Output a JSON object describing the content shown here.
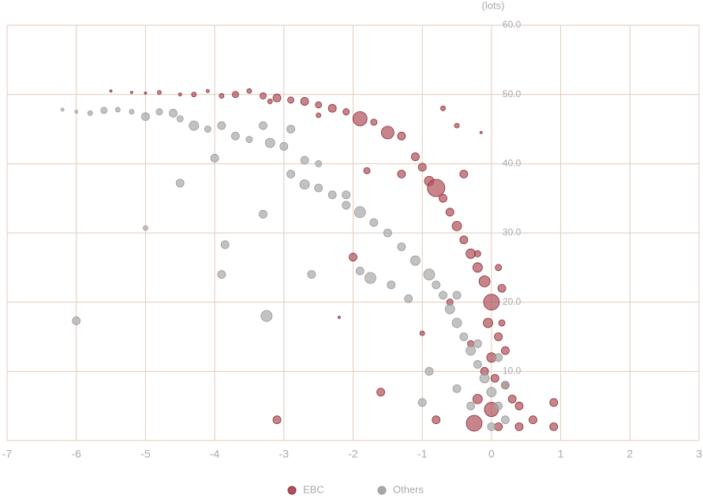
{
  "chart_data": {
    "type": "scatter",
    "y_unit": "(lots)",
    "xlim": [
      -7,
      3
    ],
    "xticks": [
      -7,
      -6,
      -5,
      -4,
      -3,
      -2,
      -1,
      0,
      1,
      2,
      3
    ],
    "ylim": [
      0,
      60
    ],
    "yticks": [
      {
        "value": 10,
        "label": "10.0"
      },
      {
        "value": 20,
        "label": "20.0"
      },
      {
        "value": 30,
        "label": "30.0"
      },
      {
        "value": 40,
        "label": "40.0"
      },
      {
        "value": 50,
        "label": "50.0"
      },
      {
        "value": 60,
        "label": "60.0"
      }
    ],
    "grid": true,
    "legend": "bottom",
    "series": [
      {
        "name": "EBC",
        "color": "#b0505a",
        "x": [
          -5.5,
          -5.2,
          -5,
          -4.8,
          -4.5,
          -4.3,
          -4.1,
          -3.9,
          -3.7,
          -3.5,
          -3.3,
          -3.1,
          -2.9,
          -2.7,
          -2.5,
          -2.3,
          -2.1,
          -1.9,
          -1.7,
          -1.5,
          -1.3,
          -1.1,
          -1,
          -0.9,
          -0.8,
          -0.7,
          -0.6,
          -0.5,
          -0.4,
          -0.3,
          -0.2,
          -0.1,
          0,
          -0.05,
          0.1,
          0,
          -0.1,
          0.2,
          -0.2,
          0,
          -0.25,
          0.1,
          0.4,
          0.9,
          0.9,
          -1.6,
          -3.1,
          -2.2,
          -1,
          -2,
          -1.8,
          -0.7,
          -0.5,
          -0.15,
          -0.4,
          -0.2,
          0.15,
          0.2,
          0.3,
          -0.3,
          0.1,
          -0.6,
          0.05,
          -1.3,
          -2.5,
          -3.2,
          0.4,
          0.6,
          -0.8,
          0.15
        ],
        "values": [
          50.5,
          50.3,
          50.2,
          50.3,
          50,
          50,
          50.5,
          49.8,
          50,
          50.5,
          49.8,
          49.5,
          49.2,
          49,
          48.5,
          48,
          47.5,
          46.5,
          46,
          44.5,
          44,
          41,
          39.5,
          37.5,
          36.5,
          35,
          33,
          31,
          29,
          27,
          25,
          23,
          20,
          17,
          15,
          12,
          10,
          8,
          6,
          4.5,
          2.5,
          2,
          2,
          5.5,
          2,
          7,
          3,
          17.8,
          15.5,
          26.5,
          39,
          48,
          45.5,
          44.5,
          38.5,
          27,
          22,
          13,
          6,
          14,
          25,
          20,
          9,
          38.5,
          47,
          49,
          5,
          3,
          3,
          17
        ],
        "sizes": [
          1.5,
          1.5,
          1.5,
          2.5,
          2,
          3,
          2,
          3,
          4,
          3,
          4,
          5,
          4,
          5,
          4,
          5,
          4,
          9,
          4,
          8,
          5,
          5,
          5,
          6,
          11,
          5,
          5,
          6,
          5,
          6,
          6,
          7,
          10,
          6,
          5,
          6,
          5,
          5,
          6,
          9,
          10,
          5,
          5,
          5,
          5,
          5,
          5,
          1.5,
          3,
          5,
          4,
          3,
          3,
          1.5,
          5,
          4,
          5,
          5,
          5,
          4,
          4,
          4,
          5,
          5,
          3,
          3,
          5,
          5,
          5,
          4
        ]
      },
      {
        "name": "Others",
        "color": "#a8a8a8",
        "x": [
          -6.2,
          -6,
          -5.8,
          -5.6,
          -5.4,
          -5.2,
          -5,
          -4.8,
          -4.6,
          -4.5,
          -4.3,
          -4.1,
          -3.9,
          -3.7,
          -3.5,
          -3.3,
          -3.2,
          -3,
          -2.9,
          -2.7,
          -2.5,
          -2.9,
          -2.7,
          -2.5,
          -2.3,
          -2.1,
          -1.9,
          -1.7,
          -1.5,
          -1.3,
          -1.1,
          -0.9,
          -0.8,
          -0.7,
          -0.6,
          -0.5,
          -0.4,
          -0.3,
          -0.2,
          -0.1,
          0,
          0.1,
          0.2,
          -0.5,
          -0.9,
          -1,
          -1.9,
          -1.75,
          -1.45,
          -6,
          -4.5,
          -4,
          -3.85,
          -3.9,
          -3.25,
          -3.3,
          -2.6,
          -5,
          -2.1,
          -1.2,
          -0.5,
          -0.2,
          0.1,
          0.2,
          -0.3,
          0
        ],
        "values": [
          47.8,
          47.5,
          47.3,
          47.7,
          47.8,
          47.5,
          46.8,
          47.5,
          47.3,
          46.5,
          45.5,
          45,
          45.5,
          44,
          43.5,
          45.5,
          43,
          42.5,
          45,
          40.5,
          40,
          38.5,
          37,
          36.5,
          35.5,
          34,
          33,
          31.5,
          30,
          28,
          26,
          24,
          22.5,
          21,
          19,
          17,
          15,
          13,
          11,
          9,
          7,
          5,
          3,
          7.5,
          10,
          5.5,
          24.5,
          23.5,
          22.5,
          17.3,
          37.2,
          40.8,
          28.3,
          24,
          18,
          32.7,
          24,
          30.7,
          35.5,
          20.5,
          21,
          14,
          12,
          8,
          5,
          2
        ],
        "sizes": [
          2,
          2,
          3,
          4,
          3,
          3,
          5,
          4,
          5,
          4,
          6,
          4,
          5,
          5,
          4,
          5,
          6,
          5,
          5,
          5,
          4,
          5,
          6,
          5,
          5,
          5,
          7,
          5,
          5,
          5,
          6,
          7,
          5,
          5,
          6,
          6,
          5,
          6,
          5,
          6,
          6,
          5,
          5,
          5,
          5,
          5,
          5,
          7,
          5,
          5,
          5,
          5,
          5,
          5,
          7,
          5,
          5,
          3,
          5,
          5,
          5,
          5,
          5,
          5,
          5,
          5
        ]
      }
    ]
  }
}
